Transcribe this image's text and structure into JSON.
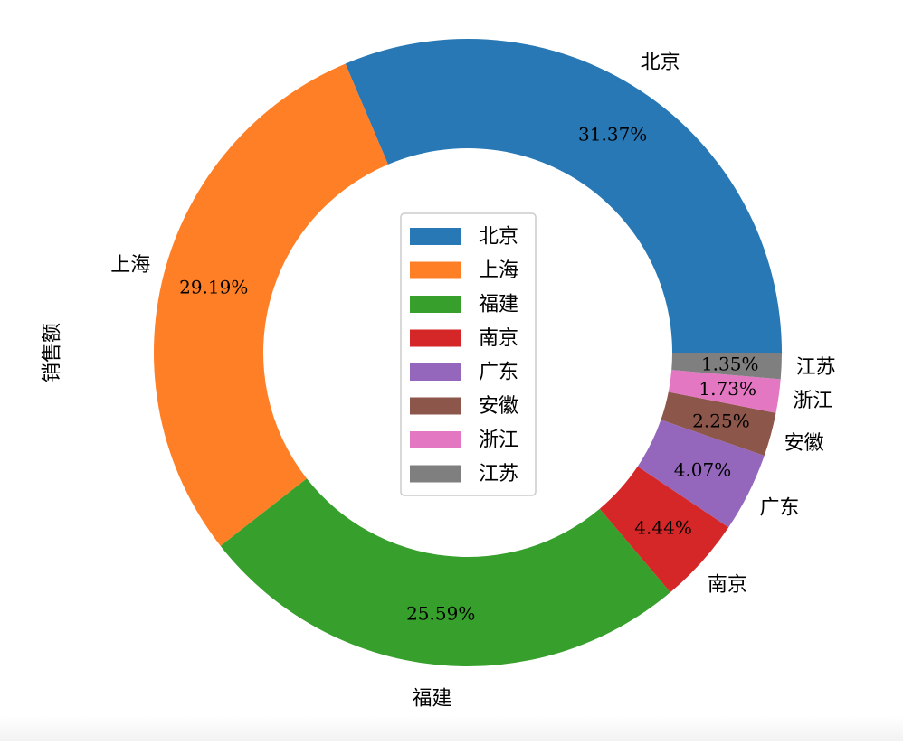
{
  "chart_data": {
    "type": "pie",
    "style": "donut",
    "ylabel": "销售额",
    "slices": [
      {
        "label": "北京",
        "percent": 31.37,
        "pct_label": "31.37%",
        "color": "#2878b5"
      },
      {
        "label": "上海",
        "percent": 29.19,
        "pct_label": "29.19%",
        "color": "#ff7f27"
      },
      {
        "label": "福建",
        "percent": 25.59,
        "pct_label": "25.59%",
        "color": "#37a02d"
      },
      {
        "label": "南京",
        "percent": 4.44,
        "pct_label": "4.44%",
        "color": "#d62728"
      },
      {
        "label": "广东",
        "percent": 4.07,
        "pct_label": "4.07%",
        "color": "#9467bd"
      },
      {
        "label": "安徽",
        "percent": 2.25,
        "pct_label": "2.25%",
        "color": "#8c564b"
      },
      {
        "label": "浙江",
        "percent": 1.73,
        "pct_label": "1.73%",
        "color": "#e377c2"
      },
      {
        "label": "江苏",
        "percent": 1.35,
        "pct_label": "1.35%",
        "color": "#7f7f7f"
      }
    ],
    "legend": {
      "position": "center",
      "entries": [
        "北京",
        "上海",
        "福建",
        "南京",
        "广东",
        "安徽",
        "浙江",
        "江苏"
      ]
    }
  }
}
